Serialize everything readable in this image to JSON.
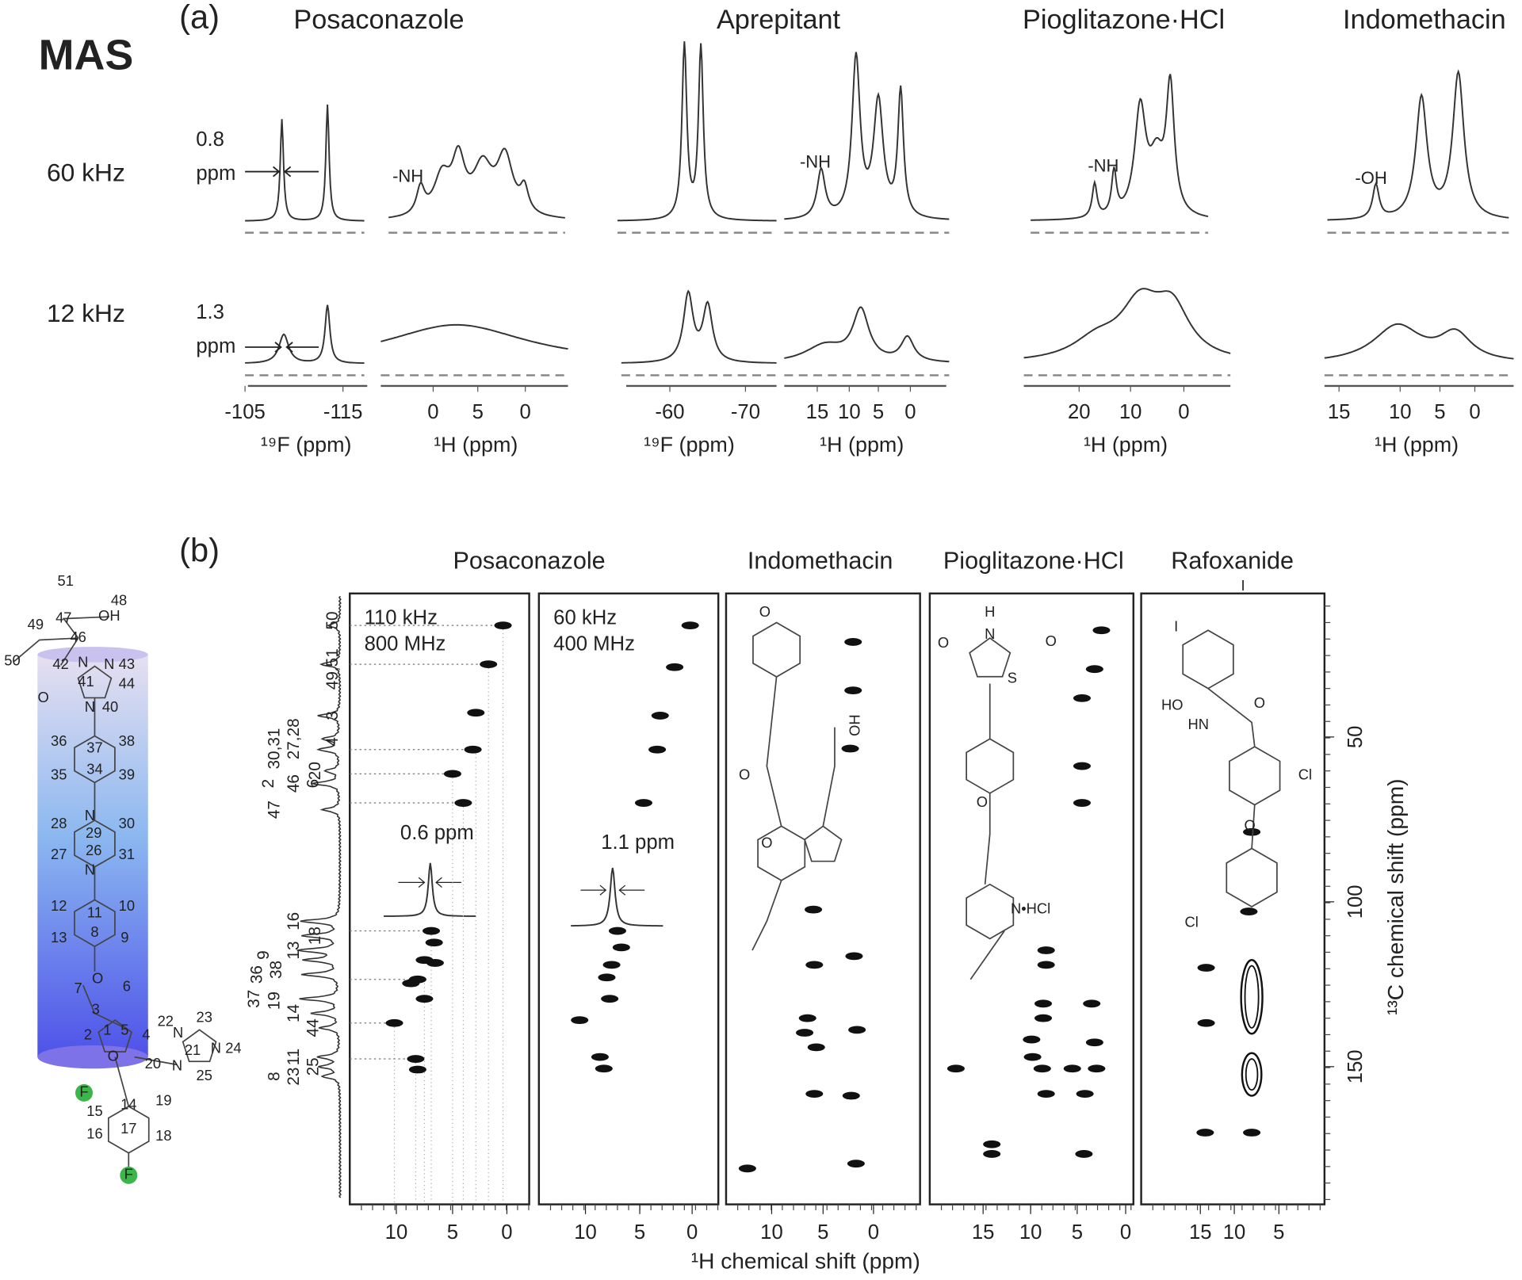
{
  "panel_a": {
    "label": "(a)",
    "mode": "MAS",
    "spin_rates": [
      "60 kHz",
      "12 kHz"
    ],
    "compounds": [
      "Posaconazole",
      "Aprepitant",
      "Pioglitazone·HCl",
      "Indomethacin"
    ],
    "linewidth_labels": [
      [
        "0.8",
        "ppm"
      ],
      [
        "1.3",
        "ppm"
      ]
    ],
    "peak_labels": [
      "-NH",
      "-NH",
      "-NH",
      "-OH"
    ],
    "axes": [
      {
        "ticks": [
          "-105",
          "-115"
        ],
        "label": "¹⁹F (ppm)"
      },
      {
        "ticks": [
          "0",
          "5",
          "0"
        ],
        "label": "¹H  (ppm)"
      },
      {
        "ticks": [
          "-60",
          "-70"
        ],
        "label": "¹⁹F (ppm)"
      },
      {
        "ticks": [
          "15",
          "10",
          "5",
          "0"
        ],
        "label": "¹H  (ppm)"
      },
      {
        "ticks": [
          "20",
          "10",
          "0"
        ],
        "label": "¹H  (ppm)"
      },
      {
        "ticks": [
          "15",
          "10",
          "5",
          "0"
        ],
        "label": "¹H  (ppm)"
      }
    ]
  },
  "panel_b": {
    "label": "(b)",
    "titles": [
      "Posaconazole",
      "Indomethacin",
      "Pioglitazone·HCl",
      "Rafoxanide"
    ],
    "conditions": [
      [
        "110 kHz",
        "800 MHz"
      ],
      [
        "60 kHz",
        "400 MHz"
      ]
    ],
    "linewidths": [
      "0.6 ppm",
      "1.1 ppm"
    ],
    "x_ticks": [
      [
        "10",
        "5",
        "0"
      ],
      [
        "10",
        "5",
        "0"
      ],
      [
        "10",
        "5",
        "0"
      ],
      [
        "15",
        "10",
        "5",
        "0"
      ],
      [
        "15",
        "10",
        "5"
      ]
    ],
    "x_label": "¹H chemical shift (ppm)",
    "y_ticks": [
      "50",
      "100",
      "150"
    ],
    "y_label": "¹³C chemical shift (ppm)",
    "carbon_assignments": [
      "50",
      "49,51",
      "3",
      "27,28",
      "4",
      "30,31",
      "20",
      "46",
      "6",
      "2",
      "47",
      "16",
      "18",
      "13",
      "9",
      "38",
      "36",
      "37",
      "19",
      "14",
      "44",
      "11",
      "25",
      "8",
      "23"
    ],
    "indomethacin_labels": [
      "O",
      "O",
      "OH",
      "O"
    ],
    "pioglitazone_labels": [
      "H",
      "N",
      "O",
      "O",
      "S",
      "O",
      "N•HCl"
    ],
    "rafoxanide_labels": [
      "I",
      "I",
      "HO",
      "O",
      "HN",
      "Cl",
      "O",
      "Cl"
    ]
  },
  "posaconazole_structure": {
    "atoms": [
      "51",
      "48",
      "47",
      "OH",
      "49",
      "46",
      "50",
      "42",
      "N",
      "N",
      "43",
      "41",
      "44",
      "O",
      "N",
      "40",
      "36",
      "37",
      "38",
      "35",
      "34",
      "39",
      "N",
      "28",
      "29",
      "30",
      "27",
      "26",
      "31",
      "N",
      "12",
      "11",
      "10",
      "13",
      "8",
      "9",
      "O",
      "7",
      "6",
      "3",
      "2",
      "1",
      "5",
      "O",
      "4",
      "20",
      "22",
      "N",
      "23",
      "N",
      "21",
      "N",
      "24",
      "25",
      "F",
      "15",
      "14",
      "19",
      "16",
      "17",
      "18",
      "F"
    ]
  }
}
